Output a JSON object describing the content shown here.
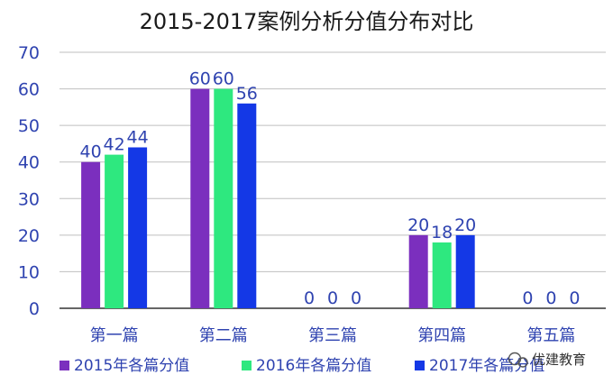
{
  "chart_data": {
    "type": "bar",
    "title": "2015-2017案例分析分值分布对比",
    "categories": [
      "第一篇",
      "第二篇",
      "第三篇",
      "第四篇",
      "第五篇"
    ],
    "series": [
      {
        "name": "2015年各篇分值",
        "values": [
          40,
          60,
          0,
          20,
          0
        ],
        "color": "#7b2fbe"
      },
      {
        "name": "2016年各篇分值",
        "values": [
          42,
          60,
          0,
          18,
          0
        ],
        "color": "#2ee87f"
      },
      {
        "name": "2017年各篇分值",
        "values": [
          44,
          56,
          0,
          20,
          0
        ],
        "color": "#1438e6"
      }
    ],
    "ylim": [
      0,
      70
    ],
    "yticks": [
      0,
      10,
      20,
      30,
      40,
      50,
      60,
      70
    ],
    "grid": true,
    "legend_position": "bottom",
    "colors": {
      "tick_text": "#2f43b0",
      "grid": "#bfbfbf",
      "axis": "#333333"
    }
  },
  "watermark": {
    "text": "优建教育",
    "icon": "wechat-icon"
  }
}
